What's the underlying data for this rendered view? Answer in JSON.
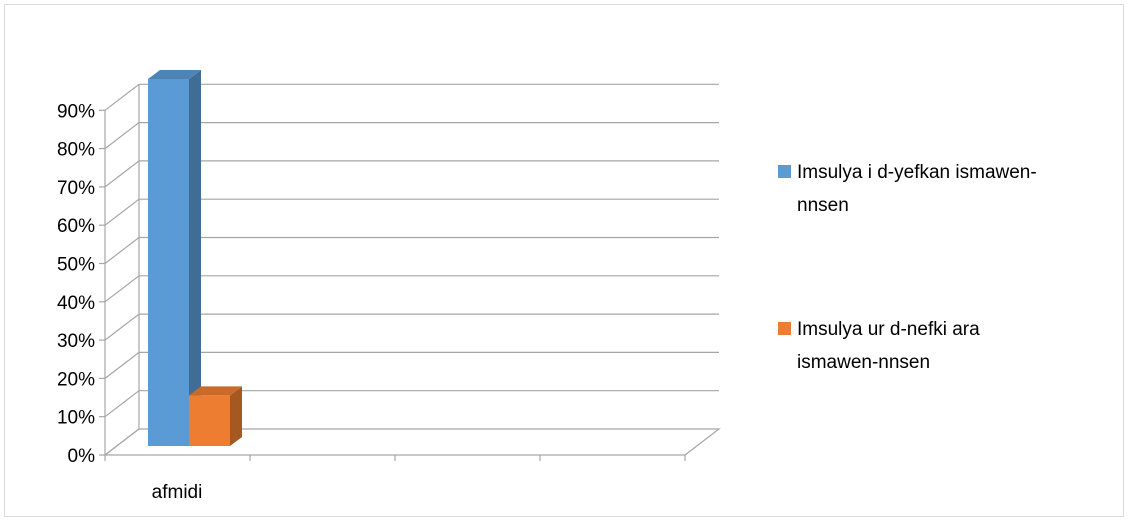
{
  "chart_data": {
    "type": "bar",
    "style": "3d-clustered-column",
    "categories": [
      "afmidi"
    ],
    "series": [
      {
        "name": "Imsulya i d-yefkan ismawen-nnsen",
        "values": [
          87
        ],
        "color": "#5b9bd5"
      },
      {
        "name": "Imsulya ur d-nefki ara ismawen-nnsen",
        "values": [
          12
        ],
        "color": "#ed7d31"
      }
    ],
    "unit": "%",
    "ylim": [
      0,
      90
    ],
    "yticks": [
      "0%",
      "10%",
      "20%",
      "30%",
      "40%",
      "50%",
      "60%",
      "70%",
      "80%",
      "90%"
    ],
    "grid": true,
    "legend": "right"
  }
}
